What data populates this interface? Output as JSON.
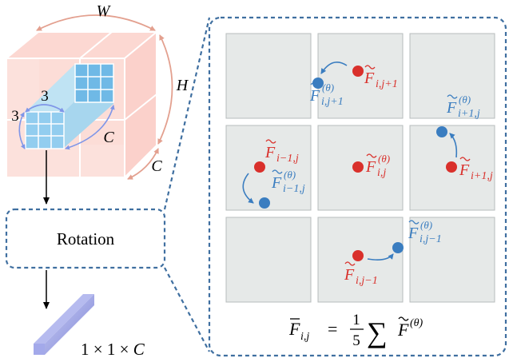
{
  "colors": {
    "red": "#d9302b",
    "blue": "#3a7dc0",
    "dash_border": "#3f6fa0",
    "cell_fill": "#e6e9e8",
    "cell_stroke": "#b7bcbc",
    "cube_fill": "#fbd7d2",
    "arc": "#e3a08f",
    "kernel_arrow": "#7f96e8"
  },
  "left_panel": {
    "cube_labels": {
      "width": "W",
      "height": "H",
      "depth": "C"
    },
    "kernel_labels": {
      "size_a": "3",
      "size_b": "3",
      "channels": "C"
    },
    "rotation_box": {
      "label": "Rotation"
    },
    "output": {
      "prefix": "1 × 1 × ",
      "channel": "C"
    }
  },
  "grid": {
    "cells": [
      {
        "row": 0,
        "col": 0,
        "red": null,
        "blue": null,
        "arrow": false
      },
      {
        "row": 0,
        "col": 1,
        "red": {
          "symbol": "F",
          "sub": "i,j+1",
          "sup": ""
        },
        "blue": {
          "symbol": "F",
          "sub": "i,j+1",
          "sup": "(θ)"
        },
        "arrow": true
      },
      {
        "row": 0,
        "col": 2,
        "red": null,
        "blue": null,
        "arrow": false
      },
      {
        "row": 1,
        "col": 0,
        "red": {
          "symbol": "F",
          "sub": "i−1,j",
          "sup": ""
        },
        "blue": {
          "symbol": "F",
          "sub": "i−1,j",
          "sup": "(θ)"
        },
        "arrow": true
      },
      {
        "row": 1,
        "col": 1,
        "red": {
          "symbol": "F",
          "sub": "i,j",
          "sup": "(θ)"
        },
        "blue": null,
        "arrow": false
      },
      {
        "row": 1,
        "col": 2,
        "red": {
          "symbol": "F",
          "sub": "i+1,j",
          "sup": ""
        },
        "blue": {
          "symbol": "F",
          "sub": "i+1,j",
          "sup": "(θ)"
        },
        "arrow": true
      },
      {
        "row": 2,
        "col": 0,
        "red": null,
        "blue": null,
        "arrow": false
      },
      {
        "row": 2,
        "col": 1,
        "red": {
          "symbol": "F",
          "sub": "i,j−1",
          "sup": ""
        },
        "blue": {
          "symbol": "F",
          "sub": "i,j−1",
          "sup": "(θ)"
        },
        "arrow": true
      },
      {
        "row": 2,
        "col": 2,
        "red": null,
        "blue": null,
        "arrow": false
      }
    ]
  },
  "formula": {
    "lhs": "F",
    "lhs_sub": "i,j",
    "equals": "=",
    "numerator": "1",
    "denominator": "5",
    "sum": "∑",
    "rhs": "F",
    "rhs_sup": "(θ)"
  }
}
